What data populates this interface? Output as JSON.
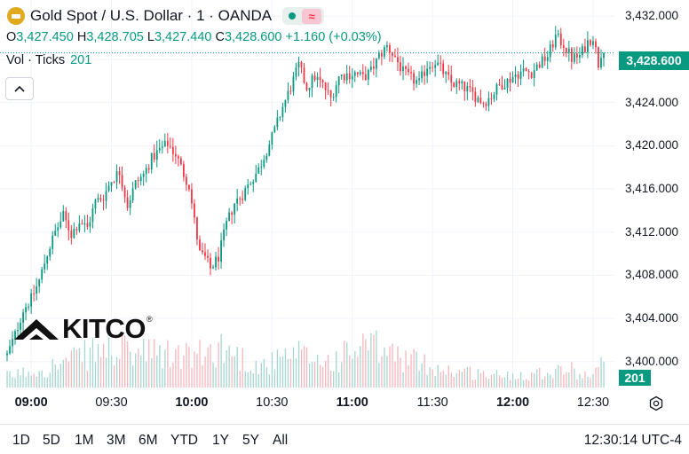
{
  "header": {
    "symbol_title": "Gold Spot / U.S. Dollar · 1 · OANDA",
    "symbol_icon": "gold-bars-icon",
    "status_icon": "market-open-dot-icon",
    "status_badge_icon": "wave-icon",
    "ohlc": {
      "o_label": "O",
      "o_value": "3,427.450",
      "h_label": "H",
      "h_value": "3,428.705",
      "l_label": "L",
      "l_value": "3,427.440",
      "c_label": "C",
      "c_value": "3,428.600",
      "change": "+1.160 (+0.03%)"
    },
    "volume": {
      "label": "Vol · Ticks",
      "value": "201"
    }
  },
  "watermark": {
    "text": "KITCO",
    "registered": "®"
  },
  "price_tag": "3,428.600",
  "volume_tag": "201",
  "colors": {
    "up": "#089981",
    "down": "#f23645",
    "vol_up": "#a5d6cf",
    "vol_down": "#f7b6bc",
    "accent": "#089981"
  },
  "timeframes": [
    "1D",
    "5D",
    "1M",
    "3M",
    "6M",
    "YTD",
    "1Y",
    "5Y",
    "All"
  ],
  "clock": "12:30:14 UTC-4",
  "chart_data": {
    "type": "candlestick",
    "title": "Gold Spot / U.S. Dollar · 1 · OANDA",
    "y_axis": {
      "ticks": [
        3432,
        3428,
        3424,
        3420,
        3416,
        3412,
        3408,
        3404,
        3400
      ],
      "tick_labels": [
        "3,432.000",
        "3,428.000",
        "3,424.000",
        "3,420.000",
        "3,416.000",
        "3,412.000",
        "3,408.000",
        "3,404.000",
        "3,400.000"
      ],
      "range": [
        3397.6,
        3433.5
      ]
    },
    "x_axis": {
      "ticks": [
        "09:00",
        "09:30",
        "10:00",
        "10:30",
        "11:00",
        "11:30",
        "12:00",
        "12:30"
      ],
      "major": [
        true,
        false,
        true,
        false,
        true,
        false,
        true,
        false
      ],
      "range_minutes": [
        531,
        754
      ]
    },
    "last_price": 3428.6,
    "grid": true,
    "price_path": [
      [
        531,
        3400.6
      ],
      [
        534,
        3402.5
      ],
      [
        537,
        3404.8
      ],
      [
        540,
        3405.8
      ],
      [
        543,
        3407.5
      ],
      [
        546,
        3410.0
      ],
      [
        549,
        3412.0
      ],
      [
        552,
        3413.5
      ],
      [
        555,
        3411.8
      ],
      [
        558,
        3413.0
      ],
      [
        561,
        3412.4
      ],
      [
        564,
        3414.8
      ],
      [
        567,
        3415.3
      ],
      [
        570,
        3416.8
      ],
      [
        573,
        3417.6
      ],
      [
        576,
        3414.5
      ],
      [
        579,
        3416.5
      ],
      [
        582,
        3417.3
      ],
      [
        585,
        3418.8
      ],
      [
        588,
        3419.6
      ],
      [
        591,
        3420.2
      ],
      [
        594,
        3419.2
      ],
      [
        597,
        3417.4
      ],
      [
        599,
        3416.3
      ],
      [
        601,
        3413.0
      ],
      [
        603,
        3410.0
      ],
      [
        605,
        3409.6
      ],
      [
        607,
        3408.6
      ],
      [
        610,
        3409.7
      ],
      [
        613,
        3412.7
      ],
      [
        616,
        3414.7
      ],
      [
        619,
        3415.5
      ],
      [
        622,
        3416.7
      ],
      [
        625,
        3417.8
      ],
      [
        628,
        3419.6
      ],
      [
        631,
        3421.4
      ],
      [
        634,
        3423.6
      ],
      [
        637,
        3425.4
      ],
      [
        640,
        3427.4
      ],
      [
        643,
        3425.4
      ],
      [
        646,
        3426.4
      ],
      [
        649,
        3425.6
      ],
      [
        652,
        3424.4
      ],
      [
        655,
        3426.4
      ],
      [
        658,
        3426.6
      ],
      [
        661,
        3426.7
      ],
      [
        664,
        3426.3
      ],
      [
        667,
        3426.9
      ],
      [
        670,
        3428.3
      ],
      [
        673,
        3429.2
      ],
      [
        676,
        3428.2
      ],
      [
        679,
        3426.8
      ],
      [
        682,
        3426.2
      ],
      [
        685,
        3425.8
      ],
      [
        688,
        3427.4
      ],
      [
        691,
        3427.8
      ],
      [
        694,
        3426.8
      ],
      [
        697,
        3425.8
      ],
      [
        700,
        3425.6
      ],
      [
        703,
        3425.2
      ],
      [
        706,
        3424.6
      ],
      [
        709,
        3424.0
      ],
      [
        712,
        3424.6
      ],
      [
        715,
        3425.6
      ],
      [
        718,
        3426.0
      ],
      [
        721,
        3426.6
      ],
      [
        724,
        3426.9
      ],
      [
        727,
        3426.8
      ],
      [
        730,
        3427.6
      ],
      [
        733,
        3428.3
      ],
      [
        736,
        3430.1
      ],
      [
        739,
        3429.4
      ],
      [
        742,
        3428.1
      ],
      [
        745,
        3428.3
      ],
      [
        748,
        3429.6
      ],
      [
        750,
        3430.1
      ],
      [
        752,
        3427.6
      ],
      [
        753,
        3428.6
      ]
    ],
    "volume_profile": [
      [
        531,
        14
      ],
      [
        550,
        28
      ],
      [
        565,
        46
      ],
      [
        595,
        40
      ],
      [
        605,
        40
      ],
      [
        610,
        52
      ],
      [
        625,
        26
      ],
      [
        640,
        40
      ],
      [
        652,
        32
      ],
      [
        665,
        52
      ],
      [
        680,
        36
      ],
      [
        695,
        22
      ],
      [
        715,
        15
      ],
      [
        728,
        18
      ],
      [
        740,
        24
      ],
      [
        748,
        15
      ],
      [
        753,
        28
      ]
    ]
  }
}
